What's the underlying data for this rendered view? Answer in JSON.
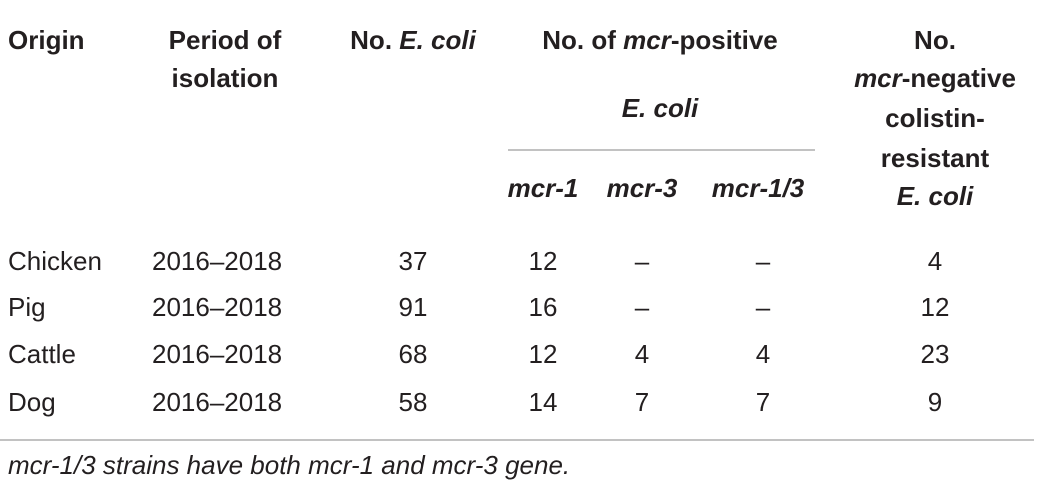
{
  "table": {
    "header": {
      "origin": "Origin",
      "period": [
        "Period of",
        "isolation"
      ],
      "no_ecoli": [
        "No. ",
        "E. coli"
      ],
      "mcr_positive": {
        "line1": [
          "No. of ",
          "mcr",
          "-positive"
        ],
        "line2": "E. coli",
        "columns": [
          "mcr-1",
          "mcr-3",
          "mcr-1/3"
        ]
      },
      "mcr_negative": [
        [
          "No."
        ],
        [
          "mcr",
          "-negative"
        ],
        [
          "colistin-"
        ],
        [
          "resistant"
        ],
        [
          "E. coli"
        ]
      ]
    },
    "rows": [
      [
        "Chicken",
        "2016–2018",
        "37",
        "12",
        "–",
        "–",
        "4"
      ],
      [
        "Pig",
        "2016–2018",
        "91",
        "16",
        "–",
        "–",
        "12"
      ],
      [
        "Cattle",
        "2016–2018",
        "68",
        "12",
        "4",
        "4",
        "23"
      ],
      [
        "Dog",
        "2016–2018",
        "58",
        "14",
        "7",
        "7",
        "9"
      ]
    ],
    "footnote": "mcr-1/3 strains have both mcr-1 and mcr-3 gene."
  }
}
